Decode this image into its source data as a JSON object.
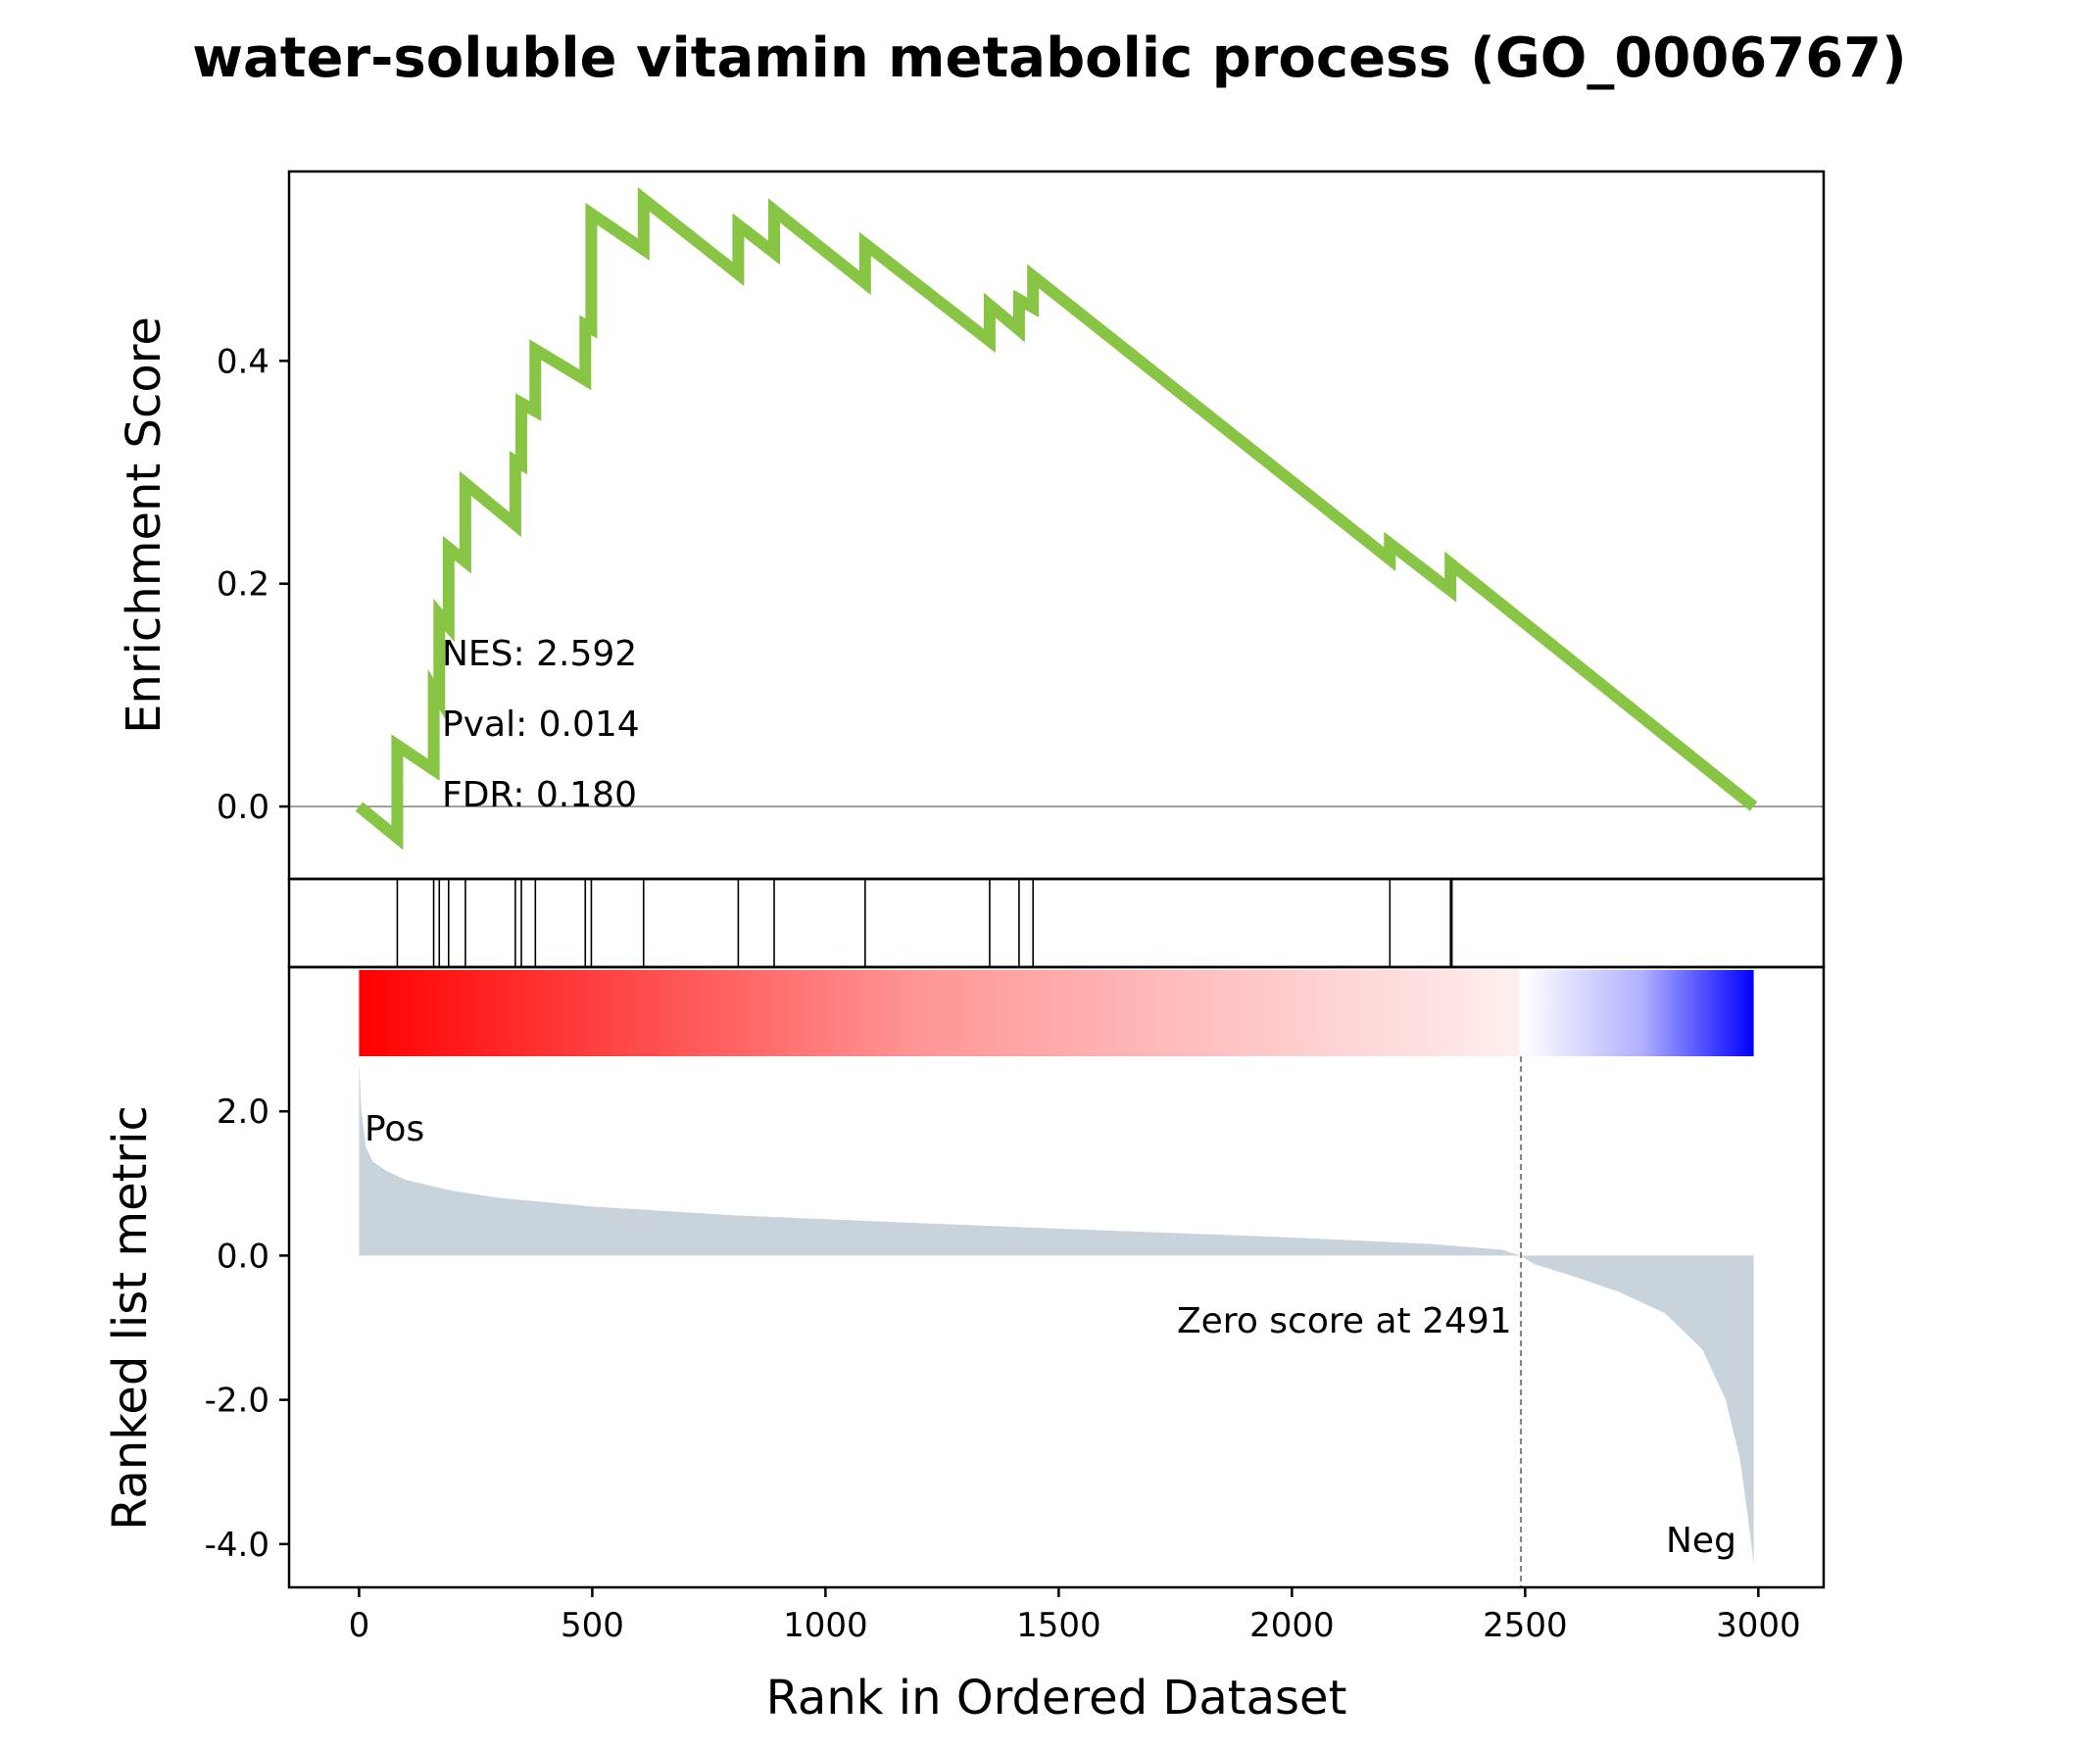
{
  "chart_data": {
    "type": "line",
    "title": "water-soluble vitamin metabolic process (GO_0006767)",
    "xlabel": "Rank in Ordered Dataset",
    "xlim": [
      -150,
      3140
    ],
    "x_ticks": [
      "0",
      "500",
      "1000",
      "1500",
      "2000",
      "2500",
      "3000"
    ],
    "colors": {
      "es_line": "#88c544",
      "baseline": "#808080",
      "metric_fill": "#c9d3dc",
      "pos": "#ff0000",
      "neg": "#0000ff",
      "zero_line": "#808080"
    },
    "es_panel": {
      "ylabel": "Enrichment Score",
      "ylim": [
        -0.065,
        0.57
      ],
      "y_ticks": [
        "0.0",
        "0.2",
        "0.4"
      ],
      "y_tick_values": [
        0.0,
        0.2,
        0.4
      ],
      "series": [
        {
          "x": [
            0,
            82,
            82,
            160,
            160,
            172,
            172,
            192,
            192,
            228,
            228,
            335,
            335,
            348,
            348,
            378,
            378,
            485,
            485,
            498,
            498,
            610,
            610,
            813,
            813,
            890,
            890,
            1085,
            1085,
            1352,
            1352,
            1415,
            1415,
            1445,
            1445,
            2210,
            2210,
            2340,
            2340,
            2990
          ],
          "y": [
            0.0,
            -0.028,
            0.055,
            0.033,
            0.105,
            0.097,
            0.172,
            0.162,
            0.232,
            0.22,
            0.29,
            0.253,
            0.31,
            0.307,
            0.362,
            0.355,
            0.41,
            0.383,
            0.432,
            0.429,
            0.532,
            0.5,
            0.545,
            0.478,
            0.522,
            0.497,
            0.535,
            0.47,
            0.505,
            0.418,
            0.45,
            0.428,
            0.455,
            0.448,
            0.476,
            0.222,
            0.236,
            0.194,
            0.218,
            0.0
          ]
        }
      ]
    },
    "stats": {
      "nes": "NES: 2.592",
      "pval": "Pval: 0.014",
      "fdr": "FDR: 0.180"
    },
    "hits": [
      82,
      160,
      172,
      192,
      228,
      335,
      348,
      378,
      485,
      498,
      610,
      813,
      890,
      1085,
      1352,
      1415,
      1445,
      2210,
      2340,
      2343
    ],
    "metric_panel": {
      "ylabel": "Ranked list metric",
      "ylim": [
        -4.6,
        4.0
      ],
      "y_ticks": [
        "2.0",
        "0.0",
        "-2.0",
        "-4.0"
      ],
      "y_tick_values": [
        2.0,
        0.0,
        -2.0,
        -4.0
      ],
      "x": [
        0,
        5,
        15,
        30,
        60,
        100,
        200,
        300,
        500,
        800,
        1200,
        1600,
        2000,
        2300,
        2450,
        2490,
        2520,
        2600,
        2700,
        2800,
        2880,
        2930,
        2960,
        2975,
        2985,
        2990
      ],
      "y": [
        2.7,
        2.0,
        1.5,
        1.3,
        1.17,
        1.05,
        0.9,
        0.8,
        0.68,
        0.56,
        0.45,
        0.35,
        0.25,
        0.16,
        0.08,
        0.0,
        -0.12,
        -0.28,
        -0.5,
        -0.8,
        -1.3,
        -2.0,
        -2.8,
        -3.5,
        -4.0,
        -4.3
      ],
      "zero_score": 2491,
      "zero_label": "Zero score at 2491",
      "pos_label": "Pos",
      "neg_label": "Neg"
    },
    "gradient": {
      "from_rank": 0,
      "to_rank": 2990
    }
  }
}
